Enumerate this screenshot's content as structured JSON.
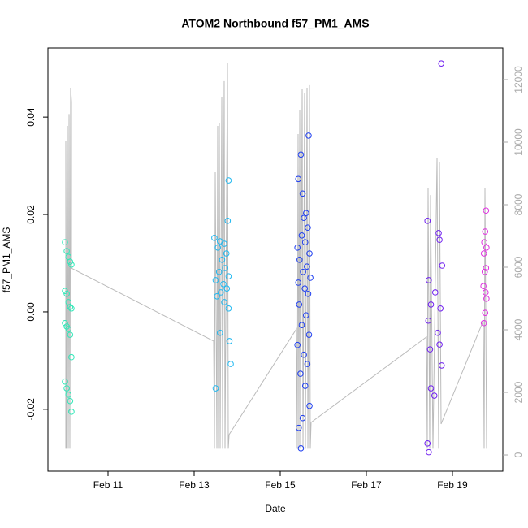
{
  "chart_data": {
    "type": "scatter",
    "title": "ATOM2 Northbound f57_PM1_AMS",
    "xlabel": "Date",
    "ylabel": "f57_PM1_AMS",
    "xlim": [
      9.604,
      20.17
    ],
    "xticks": [
      {
        "value": 11,
        "label": "Feb 11"
      },
      {
        "value": 13,
        "label": "Feb 13"
      },
      {
        "value": 15,
        "label": "Feb 15"
      },
      {
        "value": 17,
        "label": "Feb 17"
      },
      {
        "value": 19,
        "label": "Feb 19"
      }
    ],
    "ylim": [
      -0.0327,
      0.0542
    ],
    "yticks": [
      -0.02,
      {
        "value": 0,
        "label": "0.00"
      },
      0.02,
      0.04
    ],
    "y2lim": [
      -519,
      13013
    ],
    "y2ticks": [
      0,
      2000,
      4000,
      6000,
      8000,
      10000,
      12000
    ],
    "grid": false,
    "series": [
      {
        "color": "#30e8b8",
        "x": [
          10.0,
          10.04,
          10.08,
          10.12,
          10.15,
          10.0,
          10.04,
          10.08,
          10.12,
          10.15,
          10.0,
          10.04,
          10.08,
          10.12,
          10.15,
          10.0,
          10.04,
          10.08,
          10.12,
          10.15
        ],
        "values": [
          0.0143,
          0.0125,
          0.0113,
          0.0103,
          0.0097,
          0.0043,
          0.0037,
          0.002,
          0.001,
          0.0007,
          -0.0023,
          -0.003,
          -0.0035,
          -0.0047,
          -0.0093,
          -0.0143,
          -0.0157,
          -0.017,
          -0.0183,
          -0.0205
        ]
      },
      {
        "color": "#20b8f0",
        "x": [
          13.8,
          13.78,
          13.47,
          13.6,
          13.7,
          13.55,
          13.75,
          13.65,
          13.72,
          13.58,
          13.8,
          13.5,
          13.68,
          13.76,
          13.62,
          13.53,
          13.7,
          13.8,
          13.6,
          13.82,
          13.85,
          13.5
        ],
        "values": [
          0.027,
          0.0187,
          0.0152,
          0.0145,
          0.014,
          0.0132,
          0.012,
          0.0107,
          0.009,
          0.0082,
          0.0073,
          0.0065,
          0.0057,
          0.0048,
          0.004,
          0.0032,
          0.002,
          0.0007,
          -0.0043,
          -0.006,
          -0.0107,
          -0.0157
        ]
      },
      {
        "color": "#2040f0",
        "x": [
          15.66,
          15.48,
          15.52,
          15.42,
          15.6,
          15.55,
          15.64,
          15.5,
          15.58,
          15.4,
          15.68,
          15.45,
          15.62,
          15.53,
          15.7,
          15.42,
          15.57,
          15.65,
          15.44,
          15.6,
          15.5,
          15.67,
          15.4,
          15.55,
          15.63,
          15.47,
          15.58,
          15.68,
          15.52,
          15.43,
          15.48
        ],
        "values": [
          0.0362,
          0.0323,
          0.0243,
          0.0273,
          0.0203,
          0.0193,
          0.0173,
          0.0157,
          0.0143,
          0.0132,
          0.012,
          0.0107,
          0.0093,
          0.0082,
          0.007,
          0.006,
          0.0048,
          0.0037,
          0.0015,
          -0.0007,
          -0.0027,
          -0.0047,
          -0.0068,
          -0.0088,
          -0.0107,
          -0.0127,
          -0.0152,
          -0.0193,
          -0.0218,
          -0.0238,
          -0.028
        ]
      },
      {
        "color": "#7020f0",
        "x": [
          18.74,
          18.42,
          18.68,
          18.7,
          18.76,
          18.45,
          18.6,
          18.5,
          18.72,
          18.44,
          18.66,
          18.7,
          18.48,
          18.75,
          18.5,
          18.58,
          18.42,
          18.45
        ],
        "values": [
          0.051,
          0.0187,
          0.0162,
          0.0148,
          0.0095,
          0.0065,
          0.004,
          0.0015,
          0.0007,
          -0.0018,
          -0.0043,
          -0.0067,
          -0.0077,
          -0.011,
          -0.0157,
          -0.0172,
          -0.027,
          -0.0288
        ]
      },
      {
        "color": "#e030e0",
        "x": [
          19.78,
          19.76,
          19.74,
          19.79,
          19.73,
          19.78,
          19.75,
          19.72,
          19.77,
          19.79,
          19.76,
          19.73
        ],
        "values": [
          0.0208,
          0.0165,
          0.0143,
          0.0132,
          0.012,
          0.009,
          0.0082,
          0.0053,
          0.004,
          0.0027,
          -0.0002,
          -0.0023
        ]
      }
    ],
    "line": {
      "type": "line",
      "axis": "y2",
      "color": "#bbbbbb",
      "x": [
        10.019,
        10.019,
        10.038,
        10.057,
        10.076,
        10.095,
        10.113,
        10.132,
        10.151,
        10.151,
        13.453,
        13.472,
        13.491,
        13.529,
        13.547,
        13.566,
        13.585,
        13.604,
        13.642,
        13.661,
        13.698,
        13.717,
        13.774,
        13.793,
        13.812,
        15.378,
        15.396,
        15.415,
        15.434,
        15.453,
        15.472,
        15.51,
        15.529,
        15.566,
        15.585,
        15.623,
        15.642,
        15.679,
        15.698,
        15.717,
        18.396,
        18.415,
        18.434,
        18.472,
        18.491,
        18.547,
        18.642,
        18.679,
        18.698,
        18.736,
        19.717,
        19.736,
        19.755,
        19.793
      ],
      "values": [
        200,
        10050,
        200,
        10520,
        200,
        10900,
        200,
        11740,
        11300,
        5970,
        3640,
        200,
        9040,
        200,
        10520,
        200,
        10600,
        200,
        11430,
        200,
        11950,
        200,
        12520,
        200,
        650,
        4030,
        200,
        10260,
        200,
        11040,
        200,
        11690,
        200,
        11560,
        200,
        11740,
        200,
        11820,
        200,
        1040,
        3770,
        200,
        8520,
        200,
        8310,
        200,
        9480,
        200,
        9350,
        990,
        4290,
        200,
        8520,
        200
      ]
    }
  }
}
